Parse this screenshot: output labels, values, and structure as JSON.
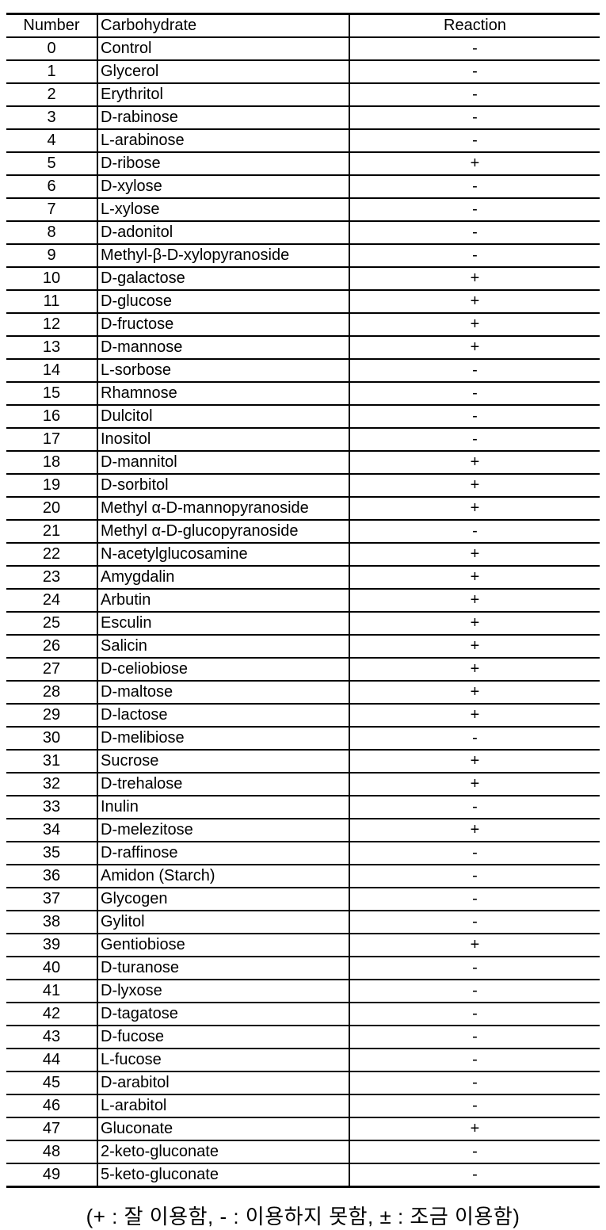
{
  "table": {
    "columns": [
      "Number",
      "Carbohydrate",
      "Reaction"
    ],
    "rows": [
      {
        "number": "0",
        "carbohydrate": "Control",
        "reaction": "-"
      },
      {
        "number": "1",
        "carbohydrate": "Glycerol",
        "reaction": "-"
      },
      {
        "number": "2",
        "carbohydrate": "Erythritol",
        "reaction": "-"
      },
      {
        "number": "3",
        "carbohydrate": "D-rabinose",
        "reaction": "-"
      },
      {
        "number": "4",
        "carbohydrate": "L-arabinose",
        "reaction": "-"
      },
      {
        "number": "5",
        "carbohydrate": "D-ribose",
        "reaction": "+"
      },
      {
        "number": "6",
        "carbohydrate": "D-xylose",
        "reaction": "-"
      },
      {
        "number": "7",
        "carbohydrate": "L-xylose",
        "reaction": "-"
      },
      {
        "number": "8",
        "carbohydrate": "D-adonitol",
        "reaction": "-"
      },
      {
        "number": "9",
        "carbohydrate": "Methyl-β-D-xylopyranoside",
        "reaction": "-"
      },
      {
        "number": "10",
        "carbohydrate": "D-galactose",
        "reaction": "+"
      },
      {
        "number": "11",
        "carbohydrate": "D-glucose",
        "reaction": "+"
      },
      {
        "number": "12",
        "carbohydrate": "D-fructose",
        "reaction": "+"
      },
      {
        "number": "13",
        "carbohydrate": "D-mannose",
        "reaction": "+"
      },
      {
        "number": "14",
        "carbohydrate": "L-sorbose",
        "reaction": "-"
      },
      {
        "number": "15",
        "carbohydrate": "Rhamnose",
        "reaction": "-"
      },
      {
        "number": "16",
        "carbohydrate": "Dulcitol",
        "reaction": "-"
      },
      {
        "number": "17",
        "carbohydrate": "Inositol",
        "reaction": "-"
      },
      {
        "number": "18",
        "carbohydrate": "D-mannitol",
        "reaction": "+"
      },
      {
        "number": "19",
        "carbohydrate": "D-sorbitol",
        "reaction": "+"
      },
      {
        "number": "20",
        "carbohydrate": "Methyl α-D-mannopyranoside",
        "reaction": "+"
      },
      {
        "number": "21",
        "carbohydrate": "Methyl α-D-glucopyranoside",
        "reaction": "-"
      },
      {
        "number": "22",
        "carbohydrate": "N-acetylglucosamine",
        "reaction": "+"
      },
      {
        "number": "23",
        "carbohydrate": "Amygdalin",
        "reaction": "+"
      },
      {
        "number": "24",
        "carbohydrate": "Arbutin",
        "reaction": "+"
      },
      {
        "number": "25",
        "carbohydrate": "Esculin",
        "reaction": "+"
      },
      {
        "number": "26",
        "carbohydrate": "Salicin",
        "reaction": "+"
      },
      {
        "number": "27",
        "carbohydrate": "D-celiobiose",
        "reaction": "+"
      },
      {
        "number": "28",
        "carbohydrate": "D-maltose",
        "reaction": "+"
      },
      {
        "number": "29",
        "carbohydrate": "D-lactose",
        "reaction": "+"
      },
      {
        "number": "30",
        "carbohydrate": "D-melibiose",
        "reaction": "-"
      },
      {
        "number": "31",
        "carbohydrate": "Sucrose",
        "reaction": "+"
      },
      {
        "number": "32",
        "carbohydrate": "D-trehalose",
        "reaction": "+"
      },
      {
        "number": "33",
        "carbohydrate": "Inulin",
        "reaction": "-"
      },
      {
        "number": "34",
        "carbohydrate": "D-melezitose",
        "reaction": "+"
      },
      {
        "number": "35",
        "carbohydrate": "D-raffinose",
        "reaction": "-"
      },
      {
        "number": "36",
        "carbohydrate": "Amidon (Starch)",
        "reaction": "-"
      },
      {
        "number": "37",
        "carbohydrate": "Glycogen",
        "reaction": "-"
      },
      {
        "number": "38",
        "carbohydrate": "Gylitol",
        "reaction": "-"
      },
      {
        "number": "39",
        "carbohydrate": "Gentiobiose",
        "reaction": "+"
      },
      {
        "number": "40",
        "carbohydrate": "D-turanose",
        "reaction": "-"
      },
      {
        "number": "41",
        "carbohydrate": "D-lyxose",
        "reaction": "-"
      },
      {
        "number": "42",
        "carbohydrate": "D-tagatose",
        "reaction": "-"
      },
      {
        "number": "43",
        "carbohydrate": "D-fucose",
        "reaction": "-"
      },
      {
        "number": "44",
        "carbohydrate": "L-fucose",
        "reaction": "-"
      },
      {
        "number": "45",
        "carbohydrate": "D-arabitol",
        "reaction": "-"
      },
      {
        "number": "46",
        "carbohydrate": "L-arabitol",
        "reaction": "-"
      },
      {
        "number": "47",
        "carbohydrate": "Gluconate",
        "reaction": "+"
      },
      {
        "number": "48",
        "carbohydrate": "2-keto-gluconate",
        "reaction": "-"
      },
      {
        "number": "49",
        "carbohydrate": "5-keto-gluconate",
        "reaction": "-"
      }
    ]
  },
  "footnote": "(+ : 잘 이용함, - : 이용하지 못함, ± : 조금 이용함)"
}
